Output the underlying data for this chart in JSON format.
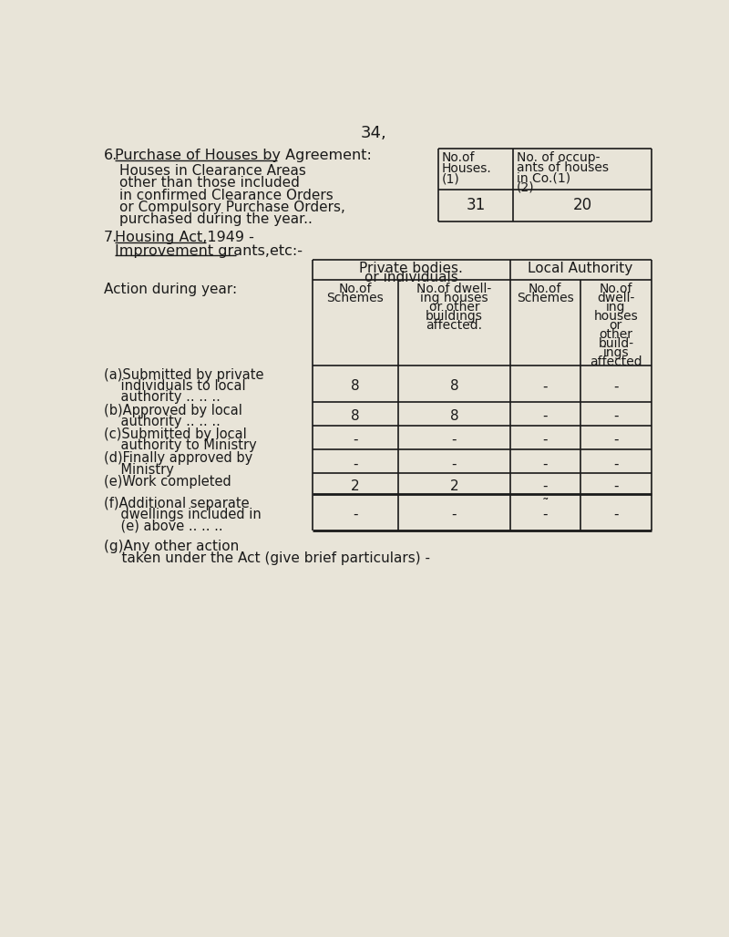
{
  "bg_color": "#e8e4d8",
  "page_number": "34,",
  "section6_label": "6.",
  "section6_title": "Purchase of Houses by Agreement:",
  "section6_body": [
    "Houses in Clearance Areas",
    "other than those included",
    "in confirmed Clearance Orders",
    "or Compulsory Purchase Orders,",
    "purchased during the year.."
  ],
  "table1_col1_header": [
    "No.of",
    "Houses.",
    "(1)"
  ],
  "table1_col2_header": [
    "No. of occup-",
    "ants of houses",
    "in Co.(1)",
    "(2)"
  ],
  "table1_val1": "31",
  "table1_val2": "20",
  "section7_label": "7.",
  "section7_title1": "Housing Act,1949 -",
  "section7_title2": "Improvement grants,etc:-",
  "table2_span1": "Private bodies.",
  "table2_span2": "or individuals",
  "table2_span3": "Local Authority",
  "col_hdr_a1": [
    "No.of",
    "Schemes"
  ],
  "col_hdr_a2": [
    "No.of dwell-",
    "ing houses",
    "or other",
    "buildings",
    "affected."
  ],
  "col_hdr_b1": [
    "No.of",
    "Schemes"
  ],
  "col_hdr_b2": [
    "No.of",
    "dwell-",
    "ing",
    "houses",
    "or",
    "other",
    "build-",
    "ings",
    "affected"
  ],
  "action_label": "Action during year:",
  "rows": [
    {
      "label": [
        "(a)Submitted by private",
        "    individuals to local",
        "    authority .. .. .."
      ],
      "vals": [
        "8",
        "8",
        "-",
        "-"
      ]
    },
    {
      "label": [
        "(b)Approved by local",
        "    authority .. .. .."
      ],
      "vals": [
        "8",
        "8",
        "-",
        "-"
      ]
    },
    {
      "label": [
        "(c)Submitted by local",
        "    authority to Ministry"
      ],
      "vals": [
        "-",
        "-",
        "-",
        "-"
      ]
    },
    {
      "label": [
        "(d)Finally approved by",
        "    Ministry"
      ],
      "vals": [
        "-",
        "-",
        "-",
        "-"
      ]
    },
    {
      "label": [
        "(e)Work completed"
      ],
      "vals": [
        "2",
        "2",
        "-",
        "-"
      ],
      "thick_bottom": true
    },
    {
      "label": [
        "(f)Additional separate",
        "    dwellings included in",
        "    (e) above .. .. .."
      ],
      "vals": [
        "-",
        "-",
        "-",
        "-"
      ],
      "thick_bottom": true,
      "has_tilde": true
    }
  ],
  "footer1": "(g)Any other action",
  "footer2": "    taken under the Act (give brief particulars) -"
}
